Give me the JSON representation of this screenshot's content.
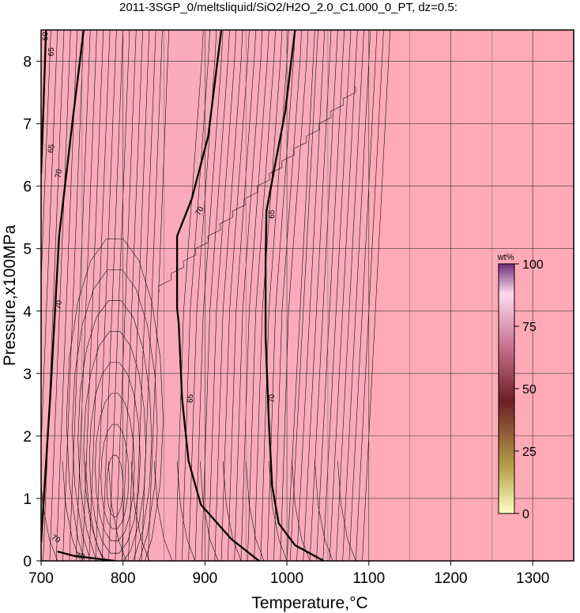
{
  "chart_data": {
    "type": "heatmap",
    "title": "2011-3SGP_0/meltsliquid/SiO2/H2O_2.0_C1.000_0_PT, dz=0.5:",
    "xlabel": "Temperature,°C",
    "ylabel": "Pressure,x100MPa",
    "xlim": [
      700,
      1350
    ],
    "ylim": [
      0,
      8.5
    ],
    "x_ticks": [
      "700",
      "800",
      "900",
      "1000",
      "1100",
      "1200",
      "1300"
    ],
    "y_ticks": [
      "0",
      "1",
      "2",
      "3",
      "4",
      "5",
      "6",
      "7",
      "8"
    ],
    "grid": true,
    "background_color": "#f9abbb",
    "subsolidus_color": "#ffaab6",
    "colorbar": {
      "label": "wt%",
      "range": [
        0,
        100
      ],
      "ticks": [
        "0",
        "25",
        "50",
        "75",
        "100"
      ],
      "placement": "right",
      "colors": [
        "#ffffc8",
        "#b7a24c",
        "#6a1f24",
        "#c06a86",
        "#ffd8ec",
        "#6e2d78"
      ]
    },
    "contour_labels": [
      "60",
      "65",
      "65",
      "70",
      "70",
      "70",
      "70",
      "70",
      "65",
      "65",
      "70"
    ],
    "major_contours": [
      {
        "level": 65,
        "points": [
          [
            700,
            6.2
          ],
          [
            703,
            7.3
          ],
          [
            706,
            8.5
          ]
        ]
      },
      {
        "level": 70,
        "points": [
          [
            700,
            0.3
          ],
          [
            712,
            2.8
          ],
          [
            722,
            5.2
          ],
          [
            738,
            7.0
          ],
          [
            752,
            8.5
          ]
        ]
      },
      {
        "level": 70,
        "points": [
          [
            720,
            0.15
          ],
          [
            740,
            0.08
          ],
          [
            790,
            0.0
          ]
        ]
      },
      {
        "level": 70,
        "points": [
          [
            966,
            0.0
          ],
          [
            932,
            0.35
          ],
          [
            895,
            0.9
          ],
          [
            880,
            1.6
          ],
          [
            872,
            2.6
          ],
          [
            868,
            3.8
          ],
          [
            866,
            4.05
          ],
          [
            866,
            5.2
          ],
          [
            884,
            5.8
          ],
          [
            904,
            6.8
          ],
          [
            920,
            8.5
          ]
        ]
      },
      {
        "level": 65,
        "points": [
          [
            1045,
            0.0
          ],
          [
            1010,
            0.25
          ],
          [
            990,
            0.6
          ],
          [
            982,
            1.2
          ],
          [
            978,
            2.2
          ],
          [
            974,
            3.6
          ],
          [
            974,
            4.8
          ],
          [
            975,
            5.6
          ],
          [
            985,
            6.3
          ],
          [
            998,
            7.2
          ],
          [
            1010,
            8.5
          ]
        ]
      }
    ]
  }
}
